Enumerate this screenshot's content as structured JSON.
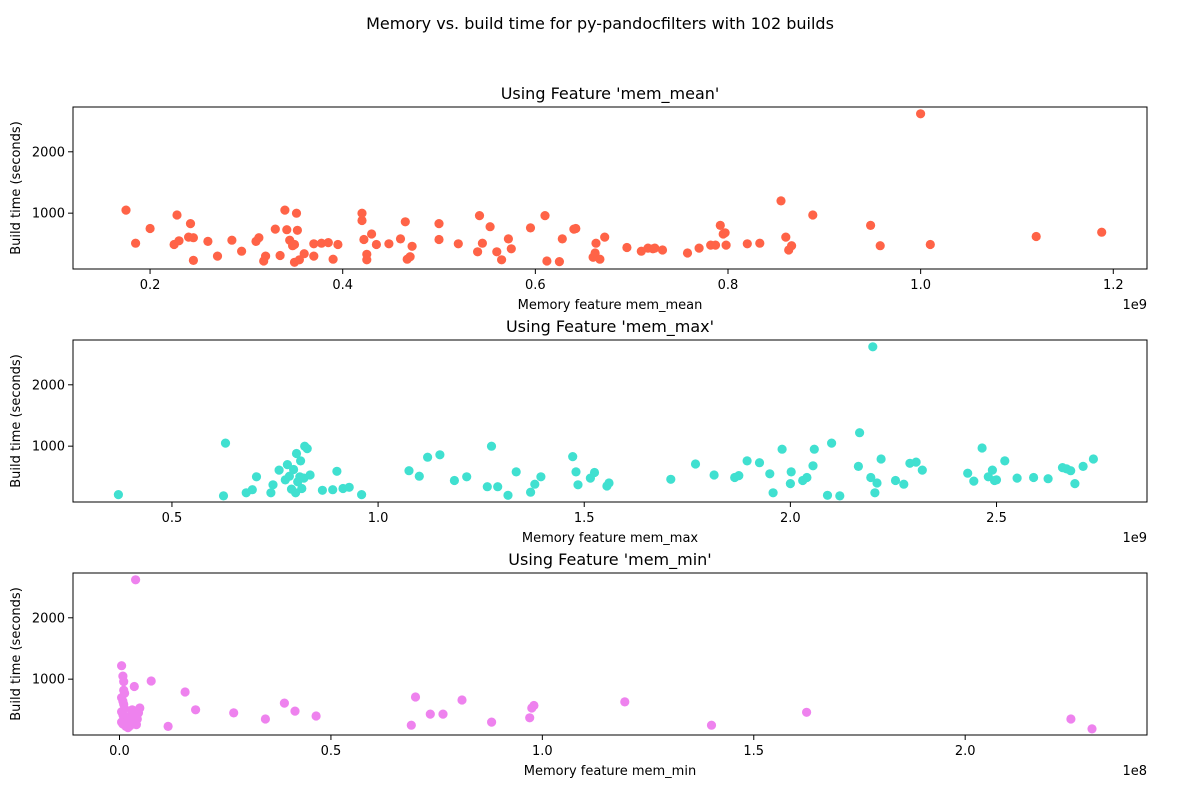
{
  "figure": {
    "suptitle": "Memory vs. build time for py-pandocfilters with 102 builds"
  },
  "chart_data": [
    {
      "type": "scatter",
      "title": "Using Feature 'mem_mean'",
      "xlabel": "Memory feature mem_mean",
      "ylabel": "Build time (seconds)",
      "x_scale_label": "1e9",
      "color": "#ff6347",
      "xlim": [
        0.12,
        1.235
      ],
      "ylim": [
        90,
        2730
      ],
      "xticks": [
        0.2,
        0.4,
        0.6,
        0.8,
        1.0,
        1.2
      ],
      "xtick_labels": [
        "0.2",
        "0.4",
        "0.6",
        "0.8",
        "1.0",
        "1.2"
      ],
      "yticks": [
        1000,
        2000
      ],
      "ytick_labels": [
        "1000",
        "2000"
      ],
      "points": [
        [
          0.175,
          1050
        ],
        [
          0.185,
          510
        ],
        [
          0.2,
          750
        ],
        [
          0.225,
          490
        ],
        [
          0.228,
          970
        ],
        [
          0.23,
          550
        ],
        [
          0.24,
          610
        ],
        [
          0.242,
          830
        ],
        [
          0.245,
          600
        ],
        [
          0.245,
          230
        ],
        [
          0.26,
          540
        ],
        [
          0.27,
          300
        ],
        [
          0.285,
          560
        ],
        [
          0.295,
          380
        ],
        [
          0.31,
          540
        ],
        [
          0.313,
          600
        ],
        [
          0.318,
          220
        ],
        [
          0.32,
          300
        ],
        [
          0.33,
          740
        ],
        [
          0.335,
          310
        ],
        [
          0.34,
          1050
        ],
        [
          0.342,
          730
        ],
        [
          0.345,
          560
        ],
        [
          0.348,
          470
        ],
        [
          0.35,
          490
        ],
        [
          0.35,
          200
        ],
        [
          0.352,
          1000
        ],
        [
          0.353,
          720
        ],
        [
          0.355,
          240
        ],
        [
          0.36,
          340
        ],
        [
          0.37,
          500
        ],
        [
          0.37,
          300
        ],
        [
          0.378,
          510
        ],
        [
          0.385,
          520
        ],
        [
          0.39,
          250
        ],
        [
          0.395,
          490
        ],
        [
          0.42,
          880
        ],
        [
          0.42,
          1000
        ],
        [
          0.422,
          570
        ],
        [
          0.425,
          240
        ],
        [
          0.425,
          330
        ],
        [
          0.43,
          660
        ],
        [
          0.435,
          490
        ],
        [
          0.448,
          500
        ],
        [
          0.46,
          580
        ],
        [
          0.465,
          860
        ],
        [
          0.467,
          250
        ],
        [
          0.47,
          290
        ],
        [
          0.472,
          460
        ],
        [
          0.5,
          570
        ],
        [
          0.5,
          830
        ],
        [
          0.52,
          500
        ],
        [
          0.54,
          370
        ],
        [
          0.542,
          960
        ],
        [
          0.545,
          510
        ],
        [
          0.553,
          780
        ],
        [
          0.56,
          370
        ],
        [
          0.565,
          240
        ],
        [
          0.572,
          580
        ],
        [
          0.575,
          420
        ],
        [
          0.595,
          760
        ],
        [
          0.61,
          960
        ],
        [
          0.612,
          220
        ],
        [
          0.625,
          210
        ],
        [
          0.628,
          580
        ],
        [
          0.64,
          740
        ],
        [
          0.642,
          750
        ],
        [
          0.66,
          280
        ],
        [
          0.662,
          350
        ],
        [
          0.663,
          510
        ],
        [
          0.667,
          250
        ],
        [
          0.672,
          610
        ],
        [
          0.695,
          440
        ],
        [
          0.71,
          380
        ],
        [
          0.717,
          430
        ],
        [
          0.722,
          420
        ],
        [
          0.724,
          430
        ],
        [
          0.732,
          400
        ],
        [
          0.758,
          350
        ],
        [
          0.77,
          430
        ],
        [
          0.782,
          480
        ],
        [
          0.787,
          480
        ],
        [
          0.792,
          800
        ],
        [
          0.795,
          660
        ],
        [
          0.797,
          680
        ],
        [
          0.798,
          480
        ],
        [
          0.82,
          500
        ],
        [
          0.833,
          510
        ],
        [
          0.855,
          1200
        ],
        [
          0.86,
          610
        ],
        [
          0.863,
          400
        ],
        [
          0.866,
          470
        ],
        [
          0.888,
          970
        ],
        [
          0.948,
          800
        ],
        [
          0.958,
          470
        ],
        [
          1.0,
          2620
        ],
        [
          1.01,
          490
        ],
        [
          1.12,
          620
        ],
        [
          1.188,
          690
        ]
      ]
    },
    {
      "type": "scatter",
      "title": "Using Feature 'mem_max'",
      "xlabel": "Memory feature mem_max",
      "ylabel": "Build time (seconds)",
      "x_scale_label": "1e9",
      "color": "#40e0d0",
      "xlim": [
        0.26,
        2.865
      ],
      "ylim": [
        90,
        2730
      ],
      "xticks": [
        0.5,
        1.0,
        1.5,
        2.0,
        2.5
      ],
      "xtick_labels": [
        "0.5",
        "1.0",
        "1.5",
        "2.0",
        "2.5"
      ],
      "yticks": [
        1000,
        2000
      ],
      "ytick_labels": [
        "1000",
        "2000"
      ],
      "points": [
        [
          0.37,
          210
        ],
        [
          0.625,
          190
        ],
        [
          0.63,
          1050
        ],
        [
          0.68,
          240
        ],
        [
          0.695,
          290
        ],
        [
          0.705,
          500
        ],
        [
          0.74,
          240
        ],
        [
          0.745,
          370
        ],
        [
          0.76,
          610
        ],
        [
          0.775,
          450
        ],
        [
          0.78,
          700
        ],
        [
          0.785,
          510
        ],
        [
          0.79,
          300
        ],
        [
          0.795,
          620
        ],
        [
          0.8,
          240
        ],
        [
          0.802,
          880
        ],
        [
          0.805,
          420
        ],
        [
          0.81,
          500
        ],
        [
          0.812,
          760
        ],
        [
          0.815,
          310
        ],
        [
          0.82,
          480
        ],
        [
          0.822,
          1000
        ],
        [
          0.828,
          960
        ],
        [
          0.835,
          530
        ],
        [
          0.865,
          280
        ],
        [
          0.89,
          290
        ],
        [
          0.9,
          590
        ],
        [
          0.915,
          310
        ],
        [
          0.93,
          330
        ],
        [
          0.96,
          210
        ],
        [
          1.075,
          600
        ],
        [
          1.1,
          510
        ],
        [
          1.12,
          820
        ],
        [
          1.15,
          860
        ],
        [
          1.185,
          440
        ],
        [
          1.215,
          500
        ],
        [
          1.265,
          340
        ],
        [
          1.275,
          1000
        ],
        [
          1.29,
          340
        ],
        [
          1.315,
          200
        ],
        [
          1.335,
          580
        ],
        [
          1.37,
          250
        ],
        [
          1.38,
          380
        ],
        [
          1.395,
          500
        ],
        [
          1.472,
          830
        ],
        [
          1.48,
          580
        ],
        [
          1.485,
          370
        ],
        [
          1.515,
          480
        ],
        [
          1.525,
          570
        ],
        [
          1.555,
          350
        ],
        [
          1.56,
          400
        ],
        [
          1.71,
          460
        ],
        [
          1.77,
          710
        ],
        [
          1.815,
          530
        ],
        [
          1.865,
          490
        ],
        [
          1.875,
          520
        ],
        [
          1.895,
          760
        ],
        [
          1.925,
          730
        ],
        [
          1.95,
          550
        ],
        [
          1.958,
          240
        ],
        [
          1.98,
          950
        ],
        [
          2.0,
          390
        ],
        [
          2.002,
          580
        ],
        [
          2.03,
          440
        ],
        [
          2.04,
          490
        ],
        [
          2.055,
          680
        ],
        [
          2.058,
          950
        ],
        [
          2.09,
          200
        ],
        [
          2.1,
          1050
        ],
        [
          2.12,
          190
        ],
        [
          2.165,
          670
        ],
        [
          2.168,
          1220
        ],
        [
          2.195,
          490
        ],
        [
          2.2,
          2620
        ],
        [
          2.205,
          240
        ],
        [
          2.21,
          400
        ],
        [
          2.22,
          790
        ],
        [
          2.255,
          440
        ],
        [
          2.275,
          380
        ],
        [
          2.29,
          720
        ],
        [
          2.305,
          740
        ],
        [
          2.32,
          610
        ],
        [
          2.43,
          560
        ],
        [
          2.445,
          430
        ],
        [
          2.465,
          970
        ],
        [
          2.48,
          500
        ],
        [
          2.49,
          610
        ],
        [
          2.495,
          440
        ],
        [
          2.5,
          450
        ],
        [
          2.52,
          760
        ],
        [
          2.55,
          480
        ],
        [
          2.59,
          490
        ],
        [
          2.625,
          470
        ],
        [
          2.66,
          650
        ],
        [
          2.67,
          630
        ],
        [
          2.68,
          600
        ],
        [
          2.69,
          390
        ],
        [
          2.71,
          670
        ],
        [
          2.735,
          790
        ]
      ]
    },
    {
      "type": "scatter",
      "title": "Using Feature 'mem_min'",
      "xlabel": "Memory feature mem_min",
      "ylabel": "Build time (seconds)",
      "x_scale_label": "1e8",
      "color": "#ee82ee",
      "xlim": [
        -0.11,
        2.43
      ],
      "ylim": [
        90,
        2730
      ],
      "xticks": [
        0.0,
        0.5,
        1.0,
        1.5,
        2.0
      ],
      "xtick_labels": [
        "0.0",
        "0.5",
        "1.0",
        "1.5",
        "2.0"
      ],
      "yticks": [
        1000,
        2000
      ],
      "ytick_labels": [
        "1000",
        "2000"
      ],
      "points": [
        [
          0.005,
          1220
        ],
        [
          0.008,
          1050
        ],
        [
          0.01,
          960
        ],
        [
          0.01,
          820
        ],
        [
          0.012,
          770
        ],
        [
          0.005,
          700
        ],
        [
          0.008,
          640
        ],
        [
          0.01,
          590
        ],
        [
          0.012,
          520
        ],
        [
          0.005,
          470
        ],
        [
          0.008,
          420
        ],
        [
          0.01,
          380
        ],
        [
          0.012,
          340
        ],
        [
          0.005,
          300
        ],
        [
          0.008,
          270
        ],
        [
          0.015,
          230
        ],
        [
          0.02,
          210
        ],
        [
          0.025,
          240
        ],
        [
          0.028,
          300
        ],
        [
          0.02,
          360
        ],
        [
          0.025,
          400
        ],
        [
          0.03,
          460
        ],
        [
          0.03,
          500
        ],
        [
          0.035,
          880
        ],
        [
          0.038,
          2620
        ],
        [
          0.04,
          260
        ],
        [
          0.042,
          350
        ],
        [
          0.045,
          450
        ],
        [
          0.048,
          530
        ],
        [
          0.075,
          970
        ],
        [
          0.115,
          230
        ],
        [
          0.155,
          790
        ],
        [
          0.18,
          500
        ],
        [
          0.27,
          450
        ],
        [
          0.345,
          350
        ],
        [
          0.39,
          610
        ],
        [
          0.415,
          480
        ],
        [
          0.465,
          400
        ],
        [
          0.69,
          250
        ],
        [
          0.7,
          710
        ],
        [
          0.735,
          430
        ],
        [
          0.765,
          430
        ],
        [
          0.81,
          660
        ],
        [
          0.88,
          300
        ],
        [
          0.97,
          370
        ],
        [
          0.975,
          530
        ],
        [
          0.98,
          570
        ],
        [
          1.195,
          630
        ],
        [
          1.4,
          250
        ],
        [
          1.625,
          460
        ],
        [
          2.25,
          350
        ],
        [
          2.3,
          190
        ]
      ]
    }
  ]
}
